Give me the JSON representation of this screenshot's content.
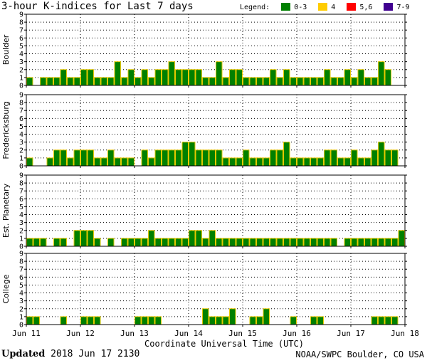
{
  "title": "3-hour K-indices for Last 7 days",
  "legend": {
    "label": "Legend:",
    "items": [
      {
        "label": "0-3",
        "color": "#008000"
      },
      {
        "label": "4",
        "color": "#ffcc00"
      },
      {
        "label": "5,6",
        "color": "#ff0000"
      },
      {
        "label": "7-9",
        "color": "#400090"
      }
    ]
  },
  "footer": {
    "updated_label": "Updated",
    "updated_value": "2018 Jun 17 2130",
    "credit": "NOAA/SWPC Boulder, CO USA"
  },
  "chart_data": {
    "type": "bar",
    "xlabel": "Coordinate Universal Time (UTC)",
    "x_tick_labels": [
      "Jun 11",
      "Jun 12",
      "Jun 13",
      "Jun 14",
      "Jun 15",
      "Jun 16",
      "Jun 17",
      "Jun 18"
    ],
    "bar_color": "#008000",
    "bar_edge_color": "#e6c800",
    "ylim": [
      0,
      9
    ],
    "y_ticks": [
      0,
      1,
      2,
      3,
      4,
      5,
      6,
      7,
      8,
      9
    ],
    "grid": true,
    "intervals_per_day": 8,
    "panels": [
      {
        "name": "Boulder",
        "values": [
          1,
          0,
          1,
          1,
          1,
          2,
          1,
          1,
          2,
          2,
          1,
          1,
          1,
          3,
          1,
          2,
          1,
          2,
          1,
          2,
          2,
          3,
          2,
          2,
          2,
          2,
          1,
          1,
          3,
          1,
          2,
          2,
          1,
          1,
          1,
          1,
          2,
          1,
          2,
          1,
          1,
          1,
          1,
          1,
          2,
          1,
          1,
          2,
          1,
          2,
          1,
          1,
          3,
          2,
          0
        ]
      },
      {
        "name": "Fredericksburg",
        "values": [
          1,
          0,
          0,
          1,
          2,
          2,
          1,
          2,
          2,
          2,
          1,
          1,
          2,
          1,
          1,
          1,
          0,
          2,
          1,
          2,
          2,
          2,
          2,
          3,
          3,
          2,
          2,
          2,
          2,
          1,
          1,
          1,
          2,
          1,
          1,
          1,
          2,
          2,
          3,
          1,
          1,
          1,
          1,
          1,
          2,
          2,
          1,
          1,
          2,
          1,
          1,
          2,
          3,
          2,
          2,
          0
        ]
      },
      {
        "name": "Est. Planetary",
        "values": [
          1,
          1,
          1,
          0,
          1,
          1,
          0,
          2,
          2,
          2,
          1,
          0,
          1,
          0,
          1,
          1,
          1,
          1,
          2,
          1,
          1,
          1,
          1,
          1,
          2,
          2,
          1,
          2,
          1,
          1,
          1,
          1,
          1,
          1,
          1,
          1,
          1,
          1,
          1,
          1,
          1,
          1,
          1,
          1,
          1,
          1,
          0,
          1,
          1,
          1,
          1,
          1,
          1,
          1,
          1,
          2
        ]
      },
      {
        "name": "College",
        "values": [
          1,
          1,
          0,
          0,
          0,
          1,
          0,
          0,
          1,
          1,
          1,
          0,
          0,
          0,
          0,
          0,
          1,
          1,
          1,
          1,
          0,
          0,
          0,
          0,
          0,
          0,
          2,
          1,
          1,
          1,
          2,
          0,
          0,
          1,
          1,
          2,
          0,
          0,
          0,
          1,
          0,
          0,
          1,
          1,
          0,
          0,
          0,
          0,
          0,
          0,
          0,
          1,
          1,
          1,
          1,
          0,
          0,
          1,
          0
        ]
      }
    ]
  }
}
